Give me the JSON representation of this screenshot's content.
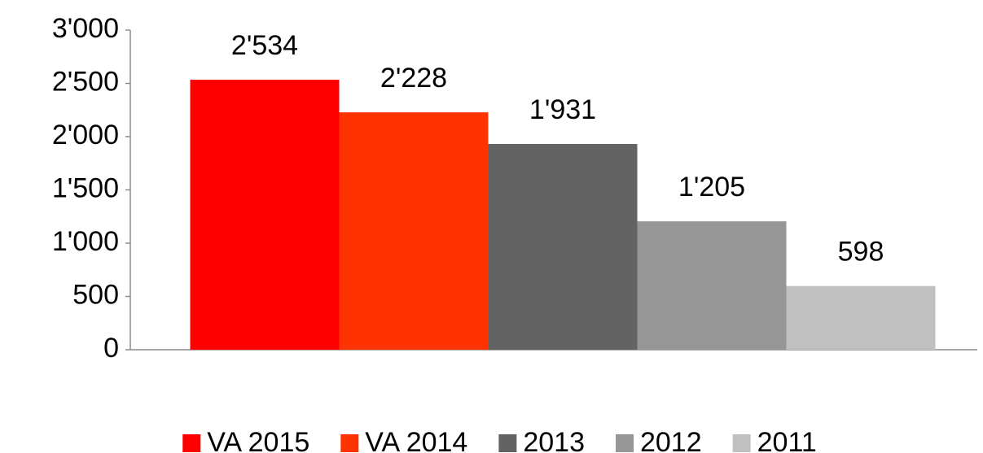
{
  "chart_data": {
    "type": "bar",
    "categories": [
      null
    ],
    "series": [
      {
        "name": "VA 2015",
        "color": "#ff0000",
        "values": [
          2534
        ],
        "value_labels": [
          "2'534"
        ]
      },
      {
        "name": "VA 2014",
        "color": "#ff3300",
        "values": [
          2228
        ],
        "value_labels": [
          "2'228"
        ]
      },
      {
        "name": "2013",
        "color": "#636363",
        "values": [
          1931
        ],
        "value_labels": [
          "1'931"
        ]
      },
      {
        "name": "2012",
        "color": "#969696",
        "values": [
          1205
        ],
        "value_labels": [
          "1'205"
        ]
      },
      {
        "name": "2011",
        "color": "#c0c0c0",
        "values": [
          598
        ],
        "value_labels": [
          "598"
        ]
      }
    ],
    "ylim": [
      0,
      3000
    ],
    "yticks": [
      0,
      500,
      {
        "value": 1000,
        "label": "1'000"
      },
      {
        "value": 1500,
        "label": "1'500"
      },
      {
        "value": 2000,
        "label": "2'000"
      },
      {
        "value": 2500,
        "label": "2'500"
      },
      {
        "value": 3000,
        "label": "3'000"
      }
    ],
    "legend": "bottom"
  }
}
